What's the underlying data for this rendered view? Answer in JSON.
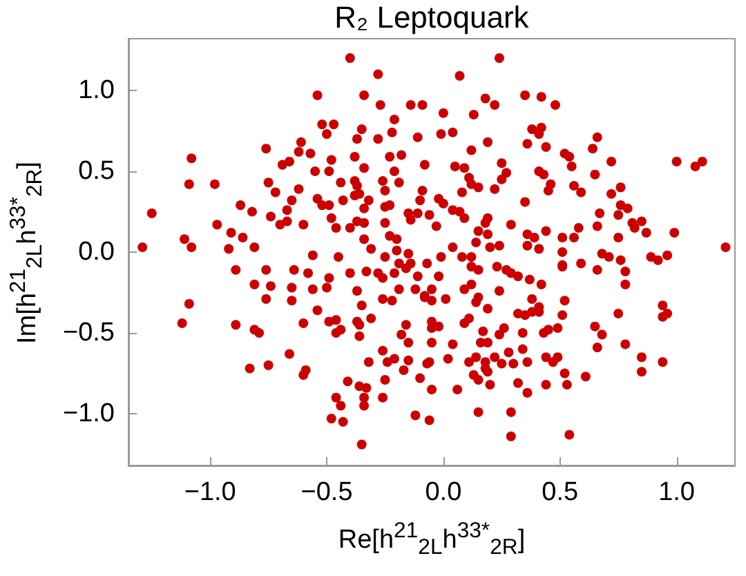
{
  "chart_data": {
    "type": "scatter",
    "title": "R₂ Leptoquark",
    "xlabel": "Re[h$^{21}$$_{2L}$h$^{33*}$$_{2R}$]",
    "ylabel": "Im[h$^{21}$$_{2L}$h$^{33*}$$_{2R}$]",
    "marker": "circle",
    "xlim": [
      -1.35,
      1.25
    ],
    "ylim": [
      -1.32,
      1.32
    ],
    "xticks": [
      {
        "value": -1,
        "label": "−1.0"
      },
      {
        "value": -0.5,
        "label": "−0.5"
      },
      {
        "value": 0,
        "label": "0.0"
      },
      {
        "value": 0.5,
        "label": "0.5"
      },
      {
        "value": 1,
        "label": "1.0"
      }
    ],
    "yticks": [
      {
        "value": -1,
        "label": "−1.0"
      },
      {
        "value": -0.5,
        "label": "−0.5"
      },
      {
        "value": 0,
        "label": "0.0"
      },
      {
        "value": 0.5,
        "label": "0.5"
      },
      {
        "value": 1,
        "label": "1.0"
      }
    ],
    "series": [
      {
        "color": "#cc0000",
        "x": [
          -0.4,
          -0.28,
          -0.54,
          -0.34,
          -0.27,
          -0.14,
          -0.09,
          -0.21,
          -0.52,
          -0.47,
          -0.35,
          -0.5,
          -0.22,
          -0.11,
          -0.37,
          -0.28,
          -0.61,
          -0.76,
          -0.62,
          -0.57,
          -1.08,
          -0.38,
          -0.23,
          -0.18,
          -0.66,
          -0.48,
          -0.69,
          -0.08,
          -0.34,
          -0.55,
          -0.49,
          -0.21,
          -1.09,
          -0.98,
          -0.75,
          -0.44,
          -0.38,
          -0.26,
          -0.19,
          -0.62,
          -0.37,
          -0.72,
          -0.38,
          -0.36,
          -0.25,
          -0.09,
          -0.54,
          -0.65,
          -0.43,
          -0.32,
          -0.1,
          -0.87,
          -0.52,
          -0.49,
          -0.34,
          -0.25,
          -0.23,
          -1.25,
          -0.82,
          -0.67,
          -0.74,
          -0.48,
          -0.15,
          -0.11,
          -0.06,
          -0.97,
          -0.7,
          -0.67,
          -0.6,
          -0.4,
          -0.37,
          -0.34,
          -0.25,
          -0.14,
          -0.46,
          -0.23,
          -0.91,
          -1.11,
          -0.86,
          -0.34,
          -0.2,
          -1.29,
          -1.08,
          -0.92,
          -0.81,
          -0.31,
          -0.2,
          -0.15,
          -0.56,
          -0.45,
          -0.25,
          -0.19,
          -0.14,
          -0.07,
          0.24,
          0.07,
          0.18,
          0.35,
          0.42,
          0.22,
          0.48,
          0.0,
          0.13,
          -0.01,
          0.04,
          0.38,
          0.42,
          0.41,
          0.66,
          0.19,
          0.36,
          0.44,
          0.64,
          0.12,
          0.52,
          0.54,
          0.72,
          1.0,
          1.08,
          1.11,
          0.25,
          0.05,
          0.09,
          0.55,
          0.27,
          0.41,
          0.43,
          0.11,
          0.25,
          0.65,
          0.12,
          0.15,
          0.22,
          0.46,
          0.56,
          0.76,
          0.08,
          0.45,
          0.59,
          0.72,
          -0.02,
          0.0,
          0.35,
          0.76,
          0.04,
          0.07,
          0.67,
          0.75,
          0.79,
          0.09,
          0.19,
          0.18,
          0.29,
          -0.03,
          0.66,
          0.58,
          0.81,
          0.85,
          0.82,
          0.15,
          0.19,
          0.36,
          0.44,
          0.39,
          0.51,
          0.56,
          0.75,
          0.87,
          0.99,
          0.04,
          0.14,
          0.2,
          0.24,
          0.36,
          0.41,
          0.51,
          0.68,
          1.21,
          -0.01,
          0.08,
          0.12,
          0.71,
          0.76,
          0.89,
          0.92,
          0.96,
          0.59,
          0.51,
          -0.89,
          -0.76,
          -0.64,
          -0.58,
          -0.49,
          -0.4,
          -0.33,
          -0.28,
          -0.21,
          -0.16,
          -0.11,
          -0.81,
          -0.74,
          -0.65,
          -0.56,
          -0.5,
          -0.37,
          -0.19,
          -0.12,
          -0.26,
          -0.76,
          -0.65,
          -0.26,
          -0.22,
          -0.08,
          -1.09,
          -0.35,
          -0.54,
          -1.12,
          -0.89,
          -0.81,
          -0.79,
          -0.6,
          -0.49,
          -0.46,
          -0.37,
          -0.31,
          -0.46,
          -0.44,
          -0.36,
          -0.36,
          -0.16,
          -0.18,
          -0.15,
          -0.05,
          -0.66,
          -0.83,
          -0.75,
          -0.59,
          -0.6,
          -0.26,
          -0.32,
          -0.24,
          -0.21,
          -0.15,
          -0.17,
          -0.07,
          -0.41,
          -0.36,
          -0.33,
          -0.25,
          -0.1,
          -0.05,
          -0.46,
          -0.44,
          -0.34,
          -0.34,
          -0.26,
          -0.48,
          -0.43,
          -0.12,
          -0.06,
          -0.35,
          0.23,
          0.27,
          0.32,
          0.29,
          0.15,
          0.12,
          -0.02,
          0.51,
          0.66,
          0.78,
          0.37,
          0.42,
          0.24,
          0.09,
          0.12,
          -0.05,
          0.78,
          -0.08,
          -0.05,
          0.01,
          0.15,
          0.14,
          0.38,
          0.52,
          0.94,
          0.19,
          0.32,
          0.35,
          0.38,
          0.41,
          0.41,
          0.51,
          0.75,
          0.94,
          0.96,
          0.11,
          0.09,
          -0.05,
          -0.02,
          0.17,
          0.26,
          0.24,
          0.34,
          0.43,
          0.45,
          0.49,
          0.65,
          0.68,
          -0.05,
          0.04,
          0.16,
          0.19,
          0.34,
          0.66,
          0.78,
          0.02,
          -0.06,
          0.11,
          0.14,
          0.18,
          0.22,
          0.28,
          0.36,
          0.44,
          0.47,
          0.49,
          0.85,
          0.94,
          0.18,
          0.25,
          0.3,
          0.19,
          0.13,
          0.52,
          0.61,
          0.85,
          0.15,
          0.2,
          0.32,
          0.44,
          0.53,
          0.06,
          0.36,
          0.15,
          0.29,
          0.29,
          0.54
        ],
        "values": [
          1.2,
          1.1,
          0.97,
          0.97,
          0.91,
          0.91,
          0.91,
          0.82,
          0.79,
          0.79,
          0.76,
          0.73,
          0.74,
          0.71,
          0.7,
          0.7,
          0.68,
          0.64,
          0.62,
          0.61,
          0.58,
          0.59,
          0.59,
          0.6,
          0.56,
          0.57,
          0.54,
          0.54,
          0.52,
          0.5,
          0.5,
          0.5,
          0.42,
          0.42,
          0.43,
          0.43,
          0.44,
          0.44,
          0.43,
          0.39,
          0.41,
          0.37,
          0.35,
          0.36,
          0.38,
          0.38,
          0.33,
          0.32,
          0.32,
          0.32,
          0.32,
          0.29,
          0.29,
          0.29,
          0.27,
          0.28,
          0.29,
          0.24,
          0.25,
          0.26,
          0.22,
          0.21,
          0.24,
          0.24,
          0.23,
          0.17,
          0.17,
          0.19,
          0.17,
          0.15,
          0.19,
          0.18,
          0.18,
          0.2,
          0.15,
          0.1,
          0.12,
          0.08,
          0.09,
          0.08,
          0.08,
          0.03,
          0.03,
          0.02,
          0.03,
          0.02,
          0.01,
          -0.01,
          -0.02,
          -0.03,
          -0.03,
          -0.07,
          -0.07,
          -0.07,
          1.2,
          1.09,
          0.95,
          0.97,
          0.96,
          0.91,
          0.91,
          0.86,
          0.85,
          0.73,
          0.74,
          0.76,
          0.77,
          0.73,
          0.71,
          0.68,
          0.67,
          0.65,
          0.64,
          0.63,
          0.61,
          0.59,
          0.56,
          0.56,
          0.53,
          0.56,
          0.55,
          0.53,
          0.52,
          0.53,
          0.49,
          0.5,
          0.48,
          0.46,
          0.45,
          0.48,
          0.42,
          0.4,
          0.39,
          0.42,
          0.41,
          0.4,
          0.37,
          0.38,
          0.37,
          0.36,
          0.33,
          0.3,
          0.31,
          0.29,
          0.26,
          0.25,
          0.24,
          0.23,
          0.27,
          0.21,
          0.21,
          0.18,
          0.17,
          0.16,
          0.16,
          0.15,
          0.18,
          0.19,
          0.15,
          0.13,
          0.11,
          0.11,
          0.13,
          0.09,
          0.09,
          0.09,
          0.09,
          0.12,
          0.12,
          0.03,
          0.06,
          0.03,
          0.04,
          0.04,
          0.02,
          0.0,
          -0.01,
          0.03,
          -0.03,
          -0.03,
          -0.03,
          -0.03,
          -0.05,
          -0.03,
          -0.05,
          -0.02,
          -0.07,
          -0.08,
          -0.11,
          -0.11,
          -0.11,
          -0.13,
          -0.16,
          -0.13,
          -0.12,
          -0.13,
          -0.13,
          -0.1,
          -0.15,
          -0.2,
          -0.21,
          -0.22,
          -0.23,
          -0.22,
          -0.24,
          -0.23,
          -0.23,
          -0.16,
          -0.29,
          -0.3,
          -0.29,
          -0.3,
          -0.27,
          -0.32,
          -0.33,
          -0.36,
          -0.44,
          -0.45,
          -0.48,
          -0.5,
          -0.44,
          -0.43,
          -0.42,
          -0.43,
          -0.41,
          -0.5,
          -0.48,
          -0.45,
          -0.52,
          -0.45,
          -0.51,
          -0.56,
          -0.47,
          -0.63,
          -0.72,
          -0.7,
          -0.73,
          -0.76,
          -0.61,
          -0.68,
          -0.68,
          -0.66,
          -0.67,
          -0.73,
          -0.69,
          -0.8,
          -0.83,
          -0.84,
          -0.79,
          -0.78,
          -0.85,
          -0.9,
          -0.95,
          -0.9,
          -0.95,
          -0.9,
          -1.03,
          -1.05,
          -1.01,
          -1.04,
          -1.19,
          -0.09,
          -0.11,
          -0.15,
          -0.13,
          -0.11,
          -0.09,
          -0.15,
          -0.09,
          -0.11,
          -0.12,
          -0.17,
          -0.2,
          -0.24,
          -0.23,
          -0.2,
          -0.23,
          -0.2,
          -0.28,
          -0.3,
          -0.29,
          -0.28,
          -0.31,
          -0.29,
          -0.3,
          -0.33,
          -0.35,
          -0.38,
          -0.39,
          -0.37,
          -0.34,
          -0.37,
          -0.39,
          -0.38,
          -0.4,
          -0.38,
          -0.41,
          -0.44,
          -0.43,
          -0.46,
          -0.49,
          -0.47,
          -0.51,
          -0.5,
          -0.5,
          -0.48,
          -0.47,
          -0.46,
          -0.51,
          -0.56,
          -0.57,
          -0.56,
          -0.56,
          -0.6,
          -0.59,
          -0.57,
          -0.66,
          -0.68,
          -0.68,
          -0.65,
          -0.68,
          -0.65,
          -0.62,
          -0.68,
          -0.65,
          -0.68,
          -0.65,
          -0.65,
          -0.68,
          -0.72,
          -0.69,
          -0.69,
          -0.74,
          -0.76,
          -0.75,
          -0.77,
          -0.74,
          -0.79,
          -0.82,
          -0.81,
          -0.82,
          -0.82,
          -0.85,
          -0.87,
          -0.99,
          -0.99,
          -1.14,
          -1.13
        ]
      }
    ]
  }
}
